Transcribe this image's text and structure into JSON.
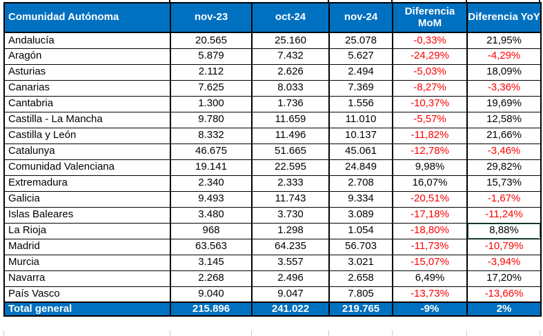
{
  "colors": {
    "header_bg": "#0070C0",
    "total_bg": "#0070C0",
    "negative_text": "#FF0000",
    "selection_green": "#217346",
    "border_black": "#000000",
    "gridline_gray": "#C9C9C9"
  },
  "table": {
    "columns": [
      "Comunidad Autónoma",
      "nov-23",
      "oct-24",
      "nov-24",
      "Diferencia MoM",
      "Diferencia YoY"
    ],
    "rows": [
      {
        "name": "Andalucía",
        "nov23": "20.565",
        "oct24": "25.160",
        "nov24": "25.078",
        "mom": "-0,33%",
        "yoy": "21,95%"
      },
      {
        "name": "Aragón",
        "nov23": "5.879",
        "oct24": "7.432",
        "nov24": "5.627",
        "mom": "-24,29%",
        "yoy": "-4,29%"
      },
      {
        "name": "Asturias",
        "nov23": "2.112",
        "oct24": "2.626",
        "nov24": "2.494",
        "mom": "-5,03%",
        "yoy": "18,09%"
      },
      {
        "name": "Canarias",
        "nov23": "7.625",
        "oct24": "8.033",
        "nov24": "7.369",
        "mom": "-8,27%",
        "yoy": "-3,36%"
      },
      {
        "name": "Cantabria",
        "nov23": "1.300",
        "oct24": "1.736",
        "nov24": "1.556",
        "mom": "-10,37%",
        "yoy": "19,69%"
      },
      {
        "name": "Castilla - La Mancha",
        "nov23": "9.780",
        "oct24": "11.659",
        "nov24": "11.010",
        "mom": "-5,57%",
        "yoy": "12,58%"
      },
      {
        "name": "Castilla y León",
        "nov23": "8.332",
        "oct24": "11.496",
        "nov24": "10.137",
        "mom": "-11,82%",
        "yoy": "21,66%"
      },
      {
        "name": "Catalunya",
        "nov23": "46.675",
        "oct24": "51.665",
        "nov24": "45.061",
        "mom": "-12,78%",
        "yoy": "-3,46%"
      },
      {
        "name": "Comunidad Valenciana",
        "nov23": "19.141",
        "oct24": "22.595",
        "nov24": "24.849",
        "mom": "9,98%",
        "yoy": "29,82%"
      },
      {
        "name": "Extremadura",
        "nov23": "2.340",
        "oct24": "2.333",
        "nov24": "2.708",
        "mom": "16,07%",
        "yoy": "15,73%"
      },
      {
        "name": "Galicia",
        "nov23": "9.493",
        "oct24": "11.743",
        "nov24": "9.334",
        "mom": "-20,51%",
        "yoy": "-1,67%"
      },
      {
        "name": "Islas Baleares",
        "nov23": "3.480",
        "oct24": "3.730",
        "nov24": "3.089",
        "mom": "-17,18%",
        "yoy": "-11,24%"
      },
      {
        "name": "La Rioja",
        "nov23": "968",
        "oct24": "1.298",
        "nov24": "1.054",
        "mom": "-18,80%",
        "yoy": "8,88%"
      },
      {
        "name": "Madrid",
        "nov23": "63.563",
        "oct24": "64.235",
        "nov24": "56.703",
        "mom": "-11,73%",
        "yoy": "-10,79%"
      },
      {
        "name": "Murcia",
        "nov23": "3.145",
        "oct24": "3.557",
        "nov24": "3.021",
        "mom": "-15,07%",
        "yoy": "-3,94%"
      },
      {
        "name": "Navarra",
        "nov23": "2.268",
        "oct24": "2.496",
        "nov24": "2.658",
        "mom": "6,49%",
        "yoy": "17,20%"
      },
      {
        "name": "País Vasco",
        "nov23": "9.040",
        "oct24": "9.047",
        "nov24": "7.805",
        "mom": "-13,73%",
        "yoy": "-13,66%"
      }
    ],
    "total": {
      "name": "Total general",
      "nov23": "215.896",
      "oct24": "241.022",
      "nov24": "219.765",
      "mom": "-9%",
      "yoy": "2%"
    }
  },
  "selection": {
    "row": "La Rioja",
    "column": "yoy"
  }
}
